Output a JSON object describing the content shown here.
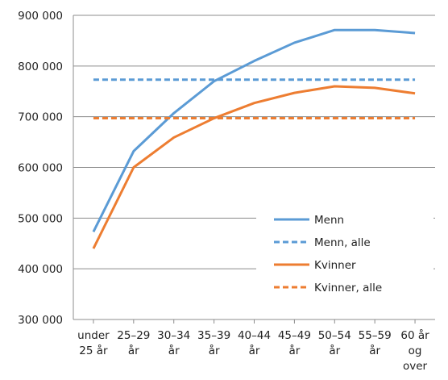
{
  "chart_data": {
    "type": "line",
    "categories": [
      [
        "under",
        "25 år"
      ],
      [
        "25–29",
        "år"
      ],
      [
        "30–34",
        "år"
      ],
      [
        "35–39",
        "år"
      ],
      [
        "40–44",
        "år"
      ],
      [
        "45–49",
        "år"
      ],
      [
        "50–54",
        "år"
      ],
      [
        "55–59",
        "år"
      ],
      [
        "60 år",
        "og",
        "over"
      ]
    ],
    "y_ticks": [
      "300 000",
      "400 000",
      "500 000",
      "600 000",
      "700 000",
      "800 000",
      "900 000"
    ],
    "y_tick_values": [
      300000,
      400000,
      500000,
      600000,
      700000,
      800000,
      900000
    ],
    "ylim": [
      300000,
      900000
    ],
    "grid": "horizontal",
    "legend_position": "bottom-right, inside plot",
    "series": [
      {
        "name": "Menn",
        "style": "solid",
        "color": "#5b9bd5",
        "values": [
          473000,
          632000,
          707000,
          770000,
          810000,
          846000,
          871000,
          871000,
          865000
        ]
      },
      {
        "name": "Menn, alle",
        "style": "dashed",
        "color": "#5b9bd5",
        "values": [
          773000,
          773000,
          773000,
          773000,
          773000,
          773000,
          773000,
          773000,
          773000
        ]
      },
      {
        "name": "Kvinner",
        "style": "solid",
        "color": "#ed7d31",
        "values": [
          440000,
          600000,
          659000,
          697000,
          727000,
          747000,
          760000,
          757000,
          746000
        ]
      },
      {
        "name": "Kvinner, alle",
        "style": "dashed",
        "color": "#ed7d31",
        "values": [
          697000,
          697000,
          697000,
          697000,
          697000,
          697000,
          697000,
          697000,
          697000
        ]
      }
    ]
  }
}
